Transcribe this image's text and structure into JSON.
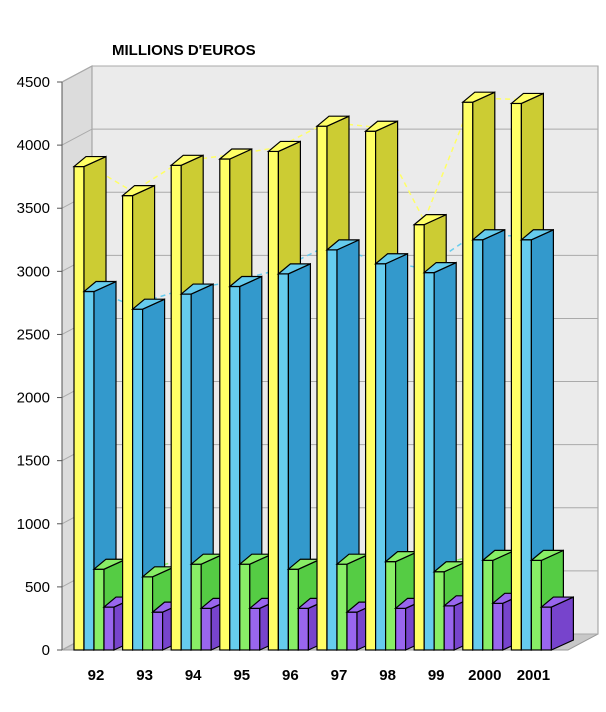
{
  "chart_data": {
    "type": "bar",
    "title": "MILLIONS D'EUROS",
    "xlabel": "",
    "ylabel": "",
    "ylim": [
      0,
      4500
    ],
    "y_ticks": [
      "0",
      "500",
      "1000",
      "1500",
      "2000",
      "2500",
      "3000",
      "3500",
      "4000",
      "4500"
    ],
    "categories": [
      "92",
      "93",
      "94",
      "95",
      "96",
      "97",
      "98",
      "99",
      "2000",
      "2001"
    ],
    "grid": true,
    "legend": "none",
    "series": [
      {
        "values": [
          3830,
          3600,
          3840,
          3890,
          3950,
          4150,
          4110,
          3370,
          4340,
          4330
        ],
        "color": "#ffff66",
        "dark": "#cccc33"
      },
      {
        "values": [
          2840,
          2700,
          2820,
          2880,
          2980,
          3170,
          3060,
          2990,
          3250,
          3250
        ],
        "color": "#66ccee",
        "dark": "#3399cc"
      },
      {
        "values": [
          640,
          580,
          680,
          680,
          640,
          680,
          700,
          620,
          710,
          710
        ],
        "color": "#88ee66",
        "dark": "#55cc44"
      },
      {
        "values": [
          340,
          300,
          330,
          330,
          330,
          300,
          330,
          350,
          370,
          340
        ],
        "color": "#9966ee",
        "dark": "#7744cc"
      }
    ]
  }
}
